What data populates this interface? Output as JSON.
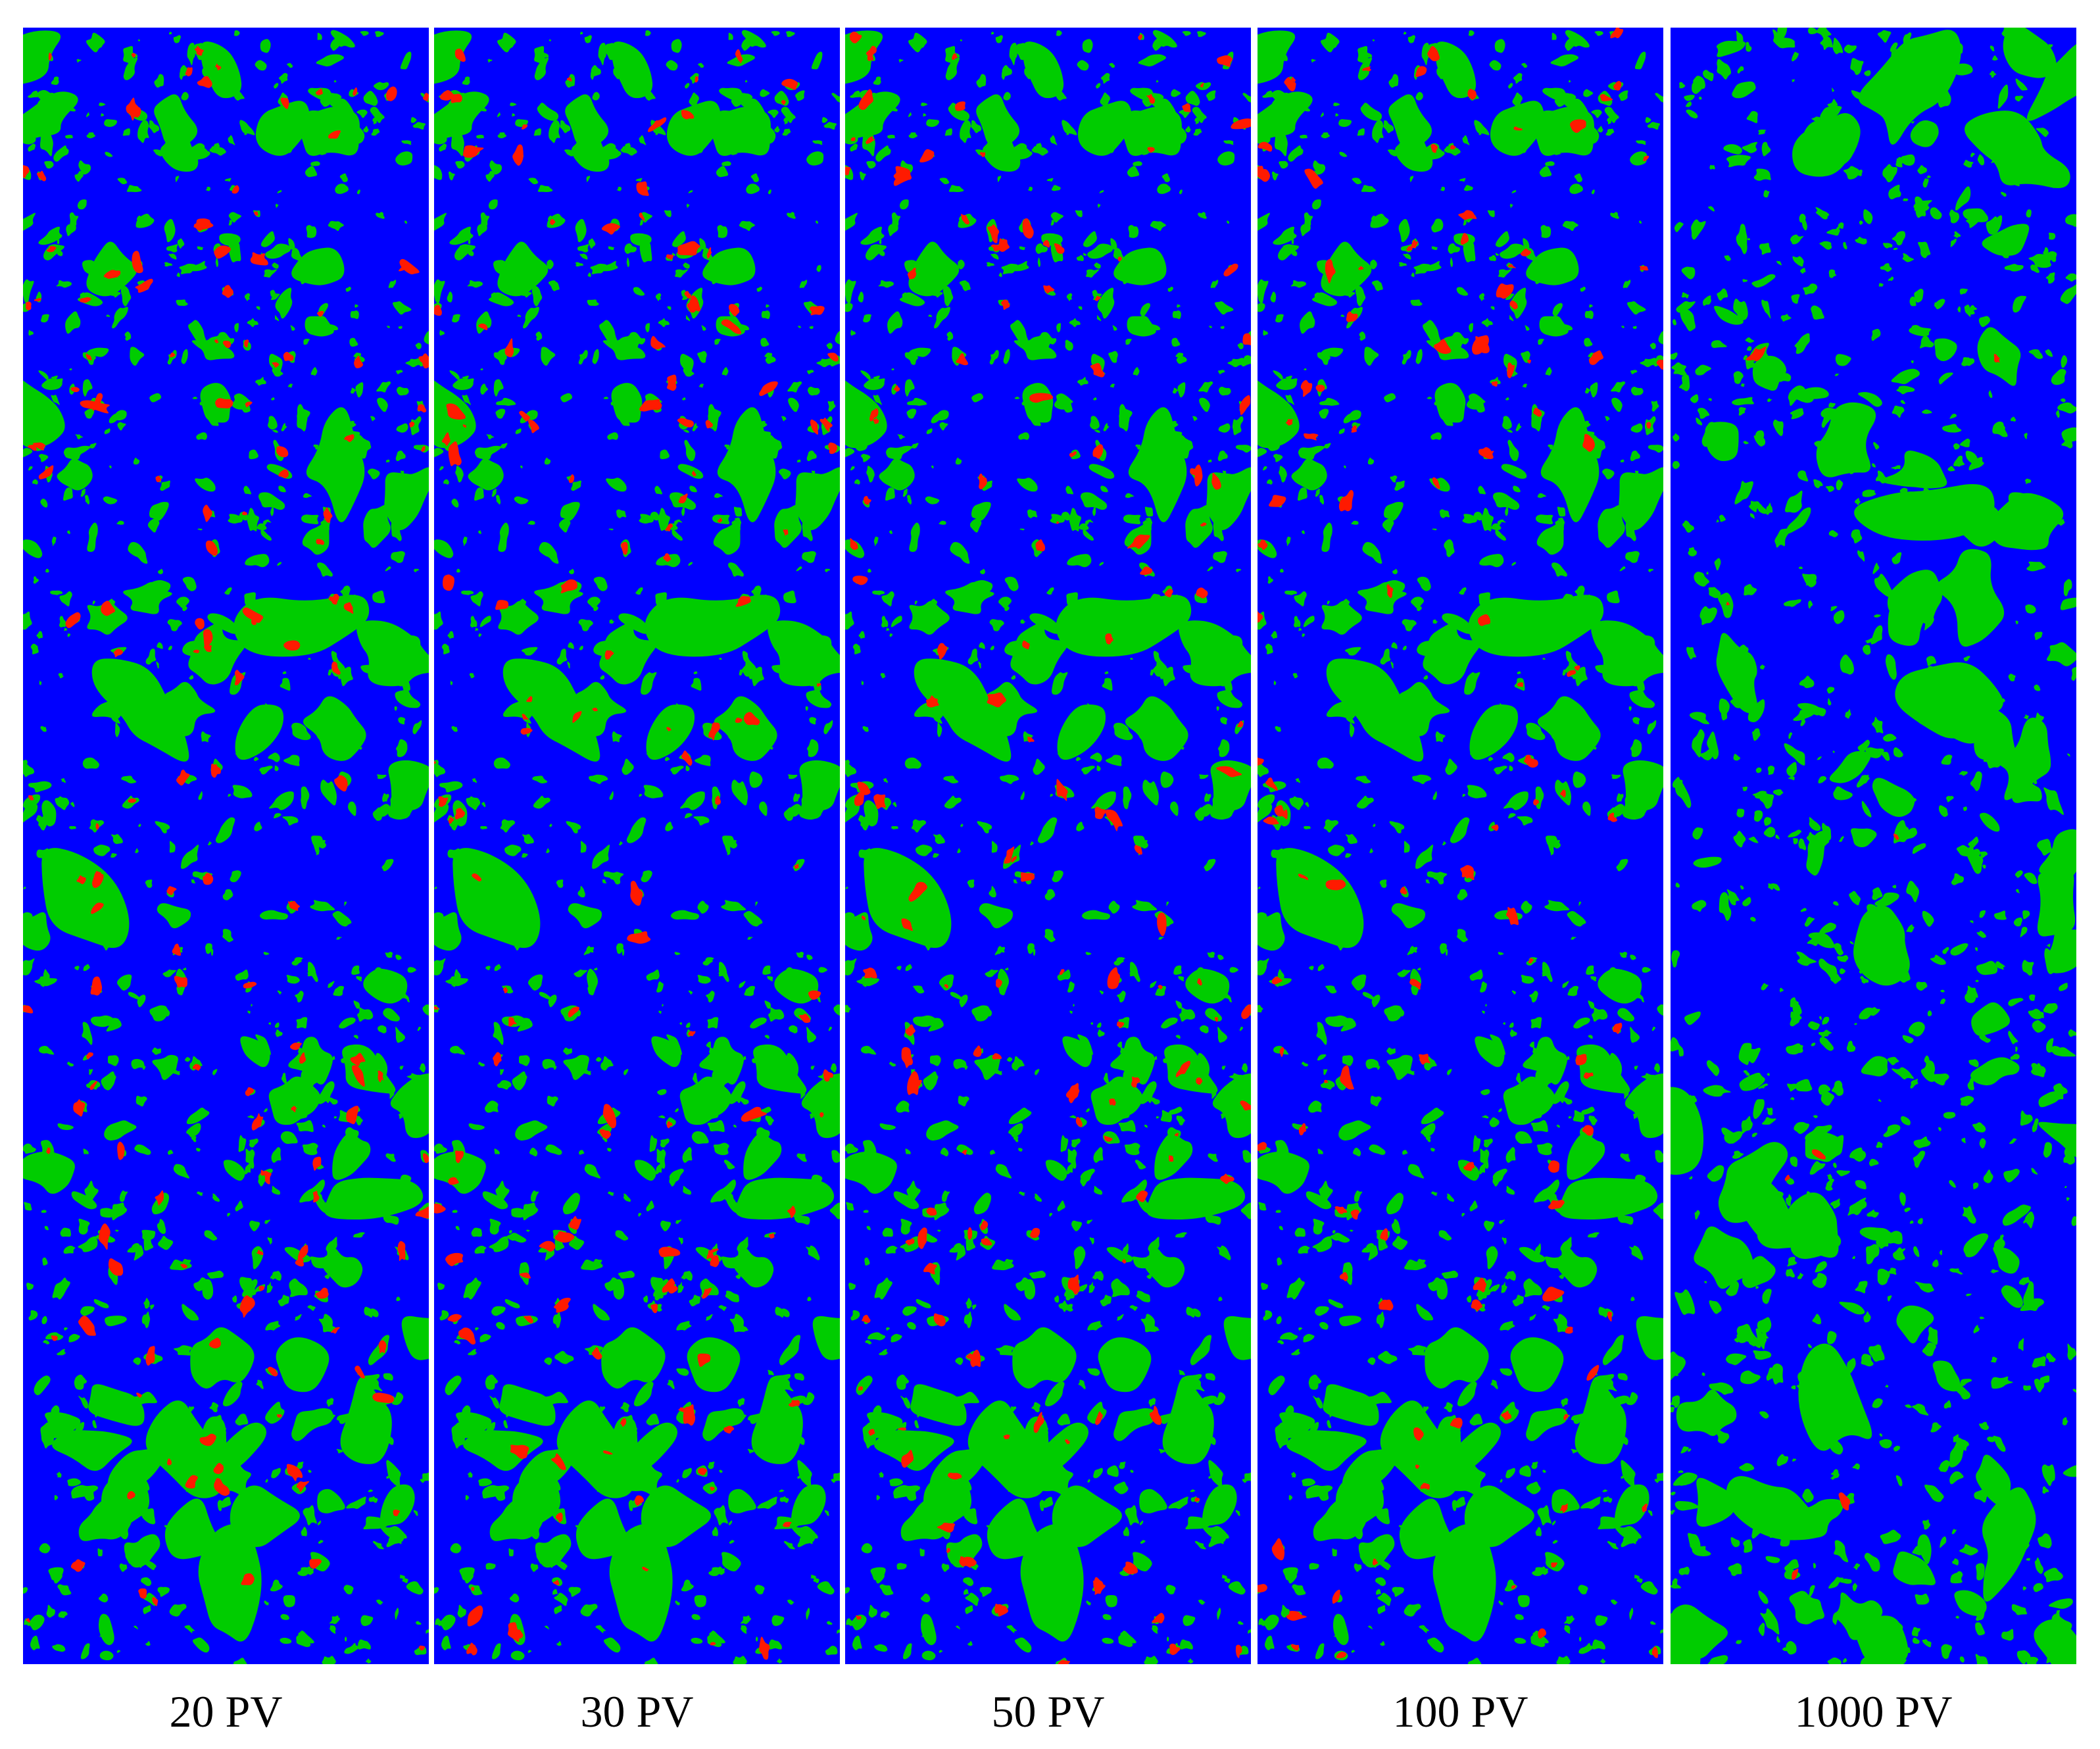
{
  "colors": {
    "matrix": "#0000ff",
    "green_phase": "#00cc00",
    "red_phase": "#ff1a00",
    "background": "#ffffff"
  },
  "panels": [
    {
      "label": "20 PV",
      "red_level": 1.0
    },
    {
      "label": "30 PV",
      "red_level": 0.9
    },
    {
      "label": "50 PV",
      "red_level": 1.0
    },
    {
      "label": "100 PV",
      "red_level": 0.8
    },
    {
      "label": "1000 PV",
      "red_level": 0.05
    }
  ]
}
